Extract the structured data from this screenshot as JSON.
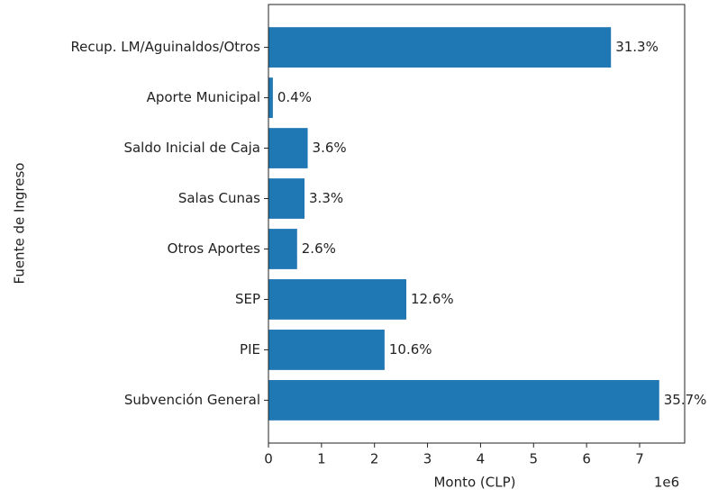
{
  "chart_data": {
    "type": "barh",
    "categories": [
      "Subvención General",
      "PIE",
      "SEP",
      "Otros Aportes",
      "Salas Cunas",
      "Saldo Inicial de Caja",
      "Aporte Municipal",
      "Recup. LM/Aguinaldos/Otros"
    ],
    "values": [
      7370000,
      2190000,
      2600000,
      540000,
      680000,
      740000,
      83000,
      6460000
    ],
    "bar_labels": [
      "35.7%",
      "10.6%",
      "12.6%",
      "2.6%",
      "3.3%",
      "3.6%",
      "0.4%",
      "31.3%"
    ],
    "color": "#1f77b4",
    "xlabel": "Monto (CLP)",
    "ylabel": "Fuente de Ingreso",
    "x_offset_label": "1e6",
    "xlim": [
      0,
      7850000
    ],
    "xticks": [
      {
        "value": 0,
        "label": "0"
      },
      {
        "value": 1000000,
        "label": "1"
      },
      {
        "value": 2000000,
        "label": "2"
      },
      {
        "value": 3000000,
        "label": "3"
      },
      {
        "value": 4000000,
        "label": "4"
      },
      {
        "value": 5000000,
        "label": "5"
      },
      {
        "value": 6000000,
        "label": "6"
      },
      {
        "value": 7000000,
        "label": "7"
      }
    ],
    "grid": false
  }
}
